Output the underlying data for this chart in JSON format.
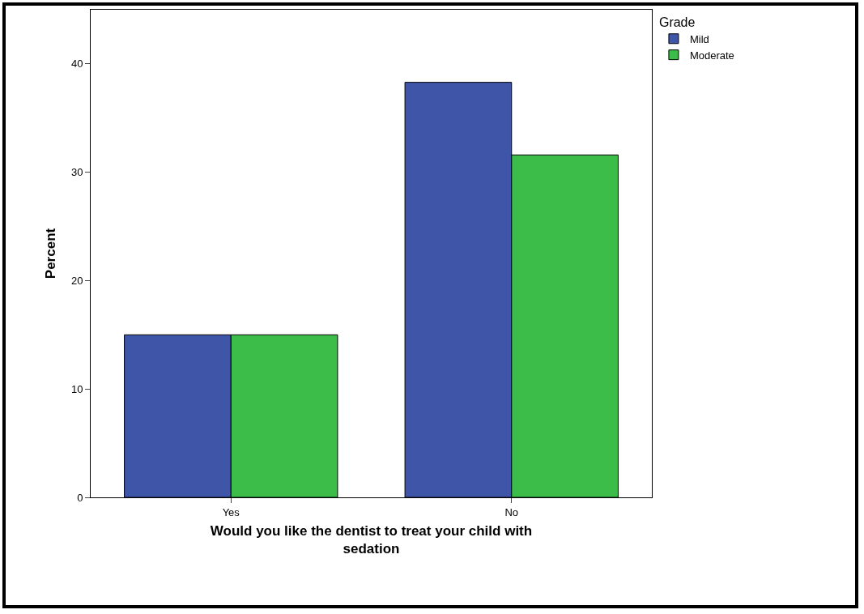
{
  "chart_data": {
    "type": "bar",
    "xlabel": "Would you like the dentist to treat your child with sedation",
    "ylabel": "Percent",
    "legend_title": "Grade",
    "categories": [
      "Yes",
      "No"
    ],
    "series": [
      {
        "name": "Mild",
        "color": "#3f56a8",
        "values": [
          15.0,
          38.3
        ]
      },
      {
        "name": "Moderate",
        "color": "#3cbd4a",
        "values": [
          15.0,
          31.6
        ]
      }
    ],
    "ylim": [
      0,
      45
    ],
    "yticks": [
      0,
      10,
      20,
      30,
      40
    ],
    "grid": false,
    "legend": "top right"
  }
}
